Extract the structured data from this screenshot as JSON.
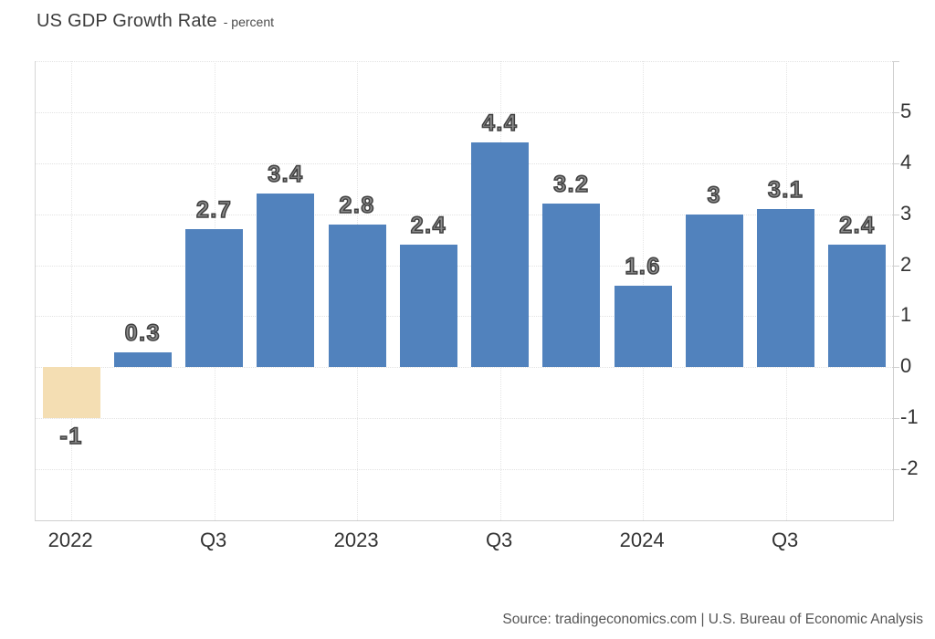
{
  "page": {
    "title": "US GDP Growth Rate",
    "title_suffix": "- percent",
    "source": "Source: tradingeconomics.com | U.S. Bureau of Economic Analysis"
  },
  "colors": {
    "bar_positive": "#5182bd",
    "bar_negative": "#f4deb3",
    "grid": "#e2e2e2",
    "axis_line": "#cfcfcf",
    "axis_text": "#333333",
    "value_label_fill": "#8c8c8c",
    "value_label_stroke": "#3f3f3f"
  },
  "chart_data": {
    "type": "bar",
    "title": "US GDP Growth Rate",
    "subtitle": "- percent",
    "ylabel": "percent",
    "categories": [
      "Q1 2022",
      "Q2 2022",
      "Q3 2022",
      "Q4 2022",
      "Q1 2023",
      "Q2 2023",
      "Q3 2023",
      "Q4 2023",
      "Q1 2024",
      "Q2 2024",
      "Q3 2024",
      "Q4 2024"
    ],
    "values": [
      -1,
      0.3,
      2.7,
      3.4,
      2.8,
      2.4,
      4.4,
      3.2,
      1.6,
      3,
      3.1,
      2.4
    ],
    "value_labels": [
      "-1",
      "0.3",
      "2.7",
      "3.4",
      "2.8",
      "2.4",
      "4.4",
      "3.2",
      "1.6",
      "3",
      "3.1",
      "2.4"
    ],
    "x_tick_labels": [
      {
        "index": 0,
        "label": "2022"
      },
      {
        "index": 2,
        "label": "Q3"
      },
      {
        "index": 4,
        "label": "2023"
      },
      {
        "index": 6,
        "label": "Q3"
      },
      {
        "index": 8,
        "label": "2024"
      },
      {
        "index": 10,
        "label": "Q3"
      }
    ],
    "y_ticks": [
      5,
      4,
      3,
      2,
      1,
      0,
      -1,
      -2
    ],
    "ylim": [
      -3,
      6
    ],
    "y_axis_side": "right",
    "grid": "dotted",
    "legend": "none"
  }
}
